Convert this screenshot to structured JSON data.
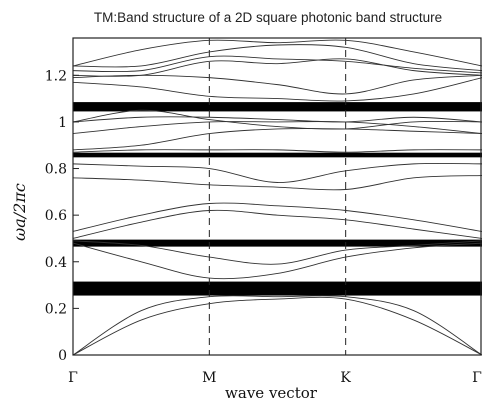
{
  "chart_data": {
    "type": "line",
    "title": "TM:Band structure of a 2D square photonic band structure",
    "xlabel": "wave vector",
    "ylabel": "ωa/2πc",
    "x_ticks": [
      {
        "label": "Γ",
        "x": 0
      },
      {
        "label": "M",
        "x": 1
      },
      {
        "label": "K",
        "x": 2
      },
      {
        "label": "Γ",
        "x": 3
      }
    ],
    "y_ticks": [
      {
        "label": "0",
        "value": 0
      },
      {
        "label": "0.2",
        "value": 0.2
      },
      {
        "label": "0.4",
        "value": 0.4
      },
      {
        "label": "0.6",
        "value": 0.6
      },
      {
        "label": "0.8",
        "value": 0.8
      },
      {
        "label": "1",
        "value": 1.0
      },
      {
        "label": "1.2",
        "value": 1.2
      }
    ],
    "xlim": [
      0,
      3
    ],
    "ylim": [
      0,
      1.36
    ],
    "symmetry_lines_x": [
      1,
      2
    ],
    "band_gaps": [
      {
        "from": 0.255,
        "to": 0.315
      },
      {
        "from": 0.465,
        "to": 0.495
      },
      {
        "from": 0.848,
        "to": 0.868
      },
      {
        "from": 1.045,
        "to": 1.085
      }
    ],
    "x": [
      0,
      0.5,
      1,
      1.5,
      2,
      2.5,
      3
    ],
    "series": [
      {
        "values": [
          0.0,
          0.15,
          0.22,
          0.24,
          0.24,
          0.15,
          0.0
        ]
      },
      {
        "values": [
          0.0,
          0.19,
          0.25,
          0.25,
          0.25,
          0.19,
          0.0
        ]
      },
      {
        "values": [
          0.48,
          0.4,
          0.33,
          0.35,
          0.42,
          0.46,
          0.48
        ]
      },
      {
        "values": [
          0.49,
          0.47,
          0.42,
          0.39,
          0.45,
          0.47,
          0.49
        ]
      },
      {
        "values": [
          0.5,
          0.57,
          0.62,
          0.6,
          0.58,
          0.54,
          0.5
        ]
      },
      {
        "values": [
          0.53,
          0.6,
          0.65,
          0.64,
          0.62,
          0.58,
          0.53
        ]
      },
      {
        "values": [
          0.76,
          0.75,
          0.73,
          0.72,
          0.71,
          0.76,
          0.77
        ]
      },
      {
        "values": [
          0.82,
          0.81,
          0.8,
          0.74,
          0.79,
          0.82,
          0.82
        ]
      },
      {
        "values": [
          0.87,
          0.88,
          0.88,
          0.88,
          0.87,
          0.88,
          0.88
        ]
      },
      {
        "values": [
          0.88,
          0.9,
          0.95,
          0.97,
          0.97,
          0.96,
          0.95
        ]
      },
      {
        "values": [
          0.95,
          0.98,
          1.0,
          1.0,
          1.0,
          0.98,
          0.95
        ]
      },
      {
        "values": [
          1.0,
          1.02,
          1.02,
          1.01,
          1.0,
          1.02,
          1.0
        ]
      },
      {
        "values": [
          1.0,
          1.05,
          1.01,
          0.98,
          0.97,
          1.0,
          1.0
        ]
      },
      {
        "values": [
          1.17,
          1.15,
          1.11,
          1.1,
          1.09,
          1.12,
          1.19
        ]
      },
      {
        "values": [
          1.19,
          1.2,
          1.19,
          1.16,
          1.12,
          1.18,
          1.2
        ]
      },
      {
        "values": [
          1.2,
          1.2,
          1.26,
          1.25,
          1.27,
          1.22,
          1.2
        ]
      },
      {
        "values": [
          1.22,
          1.22,
          1.28,
          1.27,
          1.26,
          1.23,
          1.21
        ]
      },
      {
        "values": [
          1.24,
          1.24,
          1.3,
          1.33,
          1.32,
          1.25,
          1.22
        ]
      },
      {
        "values": [
          1.24,
          1.31,
          1.35,
          1.34,
          1.35,
          1.3,
          1.24
        ]
      }
    ]
  }
}
